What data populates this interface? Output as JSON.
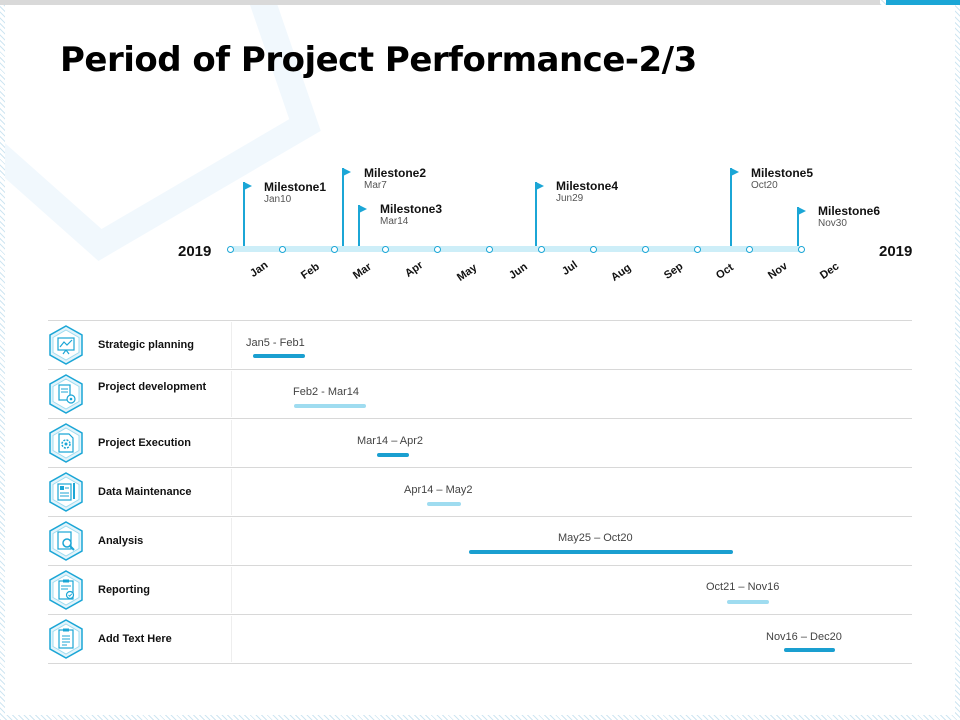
{
  "title": "Period of Project Performance-2/3",
  "timeline": {
    "year_start": "2019",
    "year_end": "2019",
    "months": [
      "Jan",
      "Feb",
      "Mar",
      "Apr",
      "May",
      "Jun",
      "Jul",
      "Aug",
      "Sep",
      "Oct",
      "Nov",
      "Dec"
    ],
    "milestones": [
      {
        "name": "Milestone1",
        "date": "Jan10"
      },
      {
        "name": "Milestone2",
        "date": "Mar7"
      },
      {
        "name": "Milestone3",
        "date": "Mar14"
      },
      {
        "name": "Milestone4",
        "date": "Jun29"
      },
      {
        "name": "Milestone5",
        "date": "Oct20"
      },
      {
        "name": "Milestone6",
        "date": "Nov30"
      }
    ]
  },
  "tasks": [
    {
      "label": "Strategic planning",
      "range": "Jan5 - Feb1",
      "icon": "strategy-board-icon",
      "bar_color": "#1a9fd0"
    },
    {
      "label": "Project development",
      "range": "Feb2 - Mar14",
      "icon": "development-document-icon",
      "bar_color": "#9fdcf0"
    },
    {
      "label": "Project Execution",
      "range": "Mar14 – Apr2",
      "icon": "execution-gear-document-icon",
      "bar_color": "#1a9fd0"
    },
    {
      "label": "Data Maintenance",
      "range": "Apr14 – May2",
      "icon": "data-maintenance-icon",
      "bar_color": "#9fdcf0"
    },
    {
      "label": "Analysis",
      "range": "May25 – Oct20",
      "icon": "analysis-magnifier-icon",
      "bar_color": "#1a9fd0"
    },
    {
      "label": "Reporting",
      "range": "Oct21 – Nov16",
      "icon": "report-clipboard-icon",
      "bar_color": "#9fdcf0"
    },
    {
      "label": "Add Text Here",
      "range": "Nov16 – Dec20",
      "icon": "clipboard-list-icon",
      "bar_color": "#1a9fd0"
    }
  ],
  "colors": {
    "accent": "#1ba6d6",
    "light_accent": "#9fdcf0",
    "axis": "#cdeef8",
    "icon_hex_fill": "#e3f4fb"
  }
}
